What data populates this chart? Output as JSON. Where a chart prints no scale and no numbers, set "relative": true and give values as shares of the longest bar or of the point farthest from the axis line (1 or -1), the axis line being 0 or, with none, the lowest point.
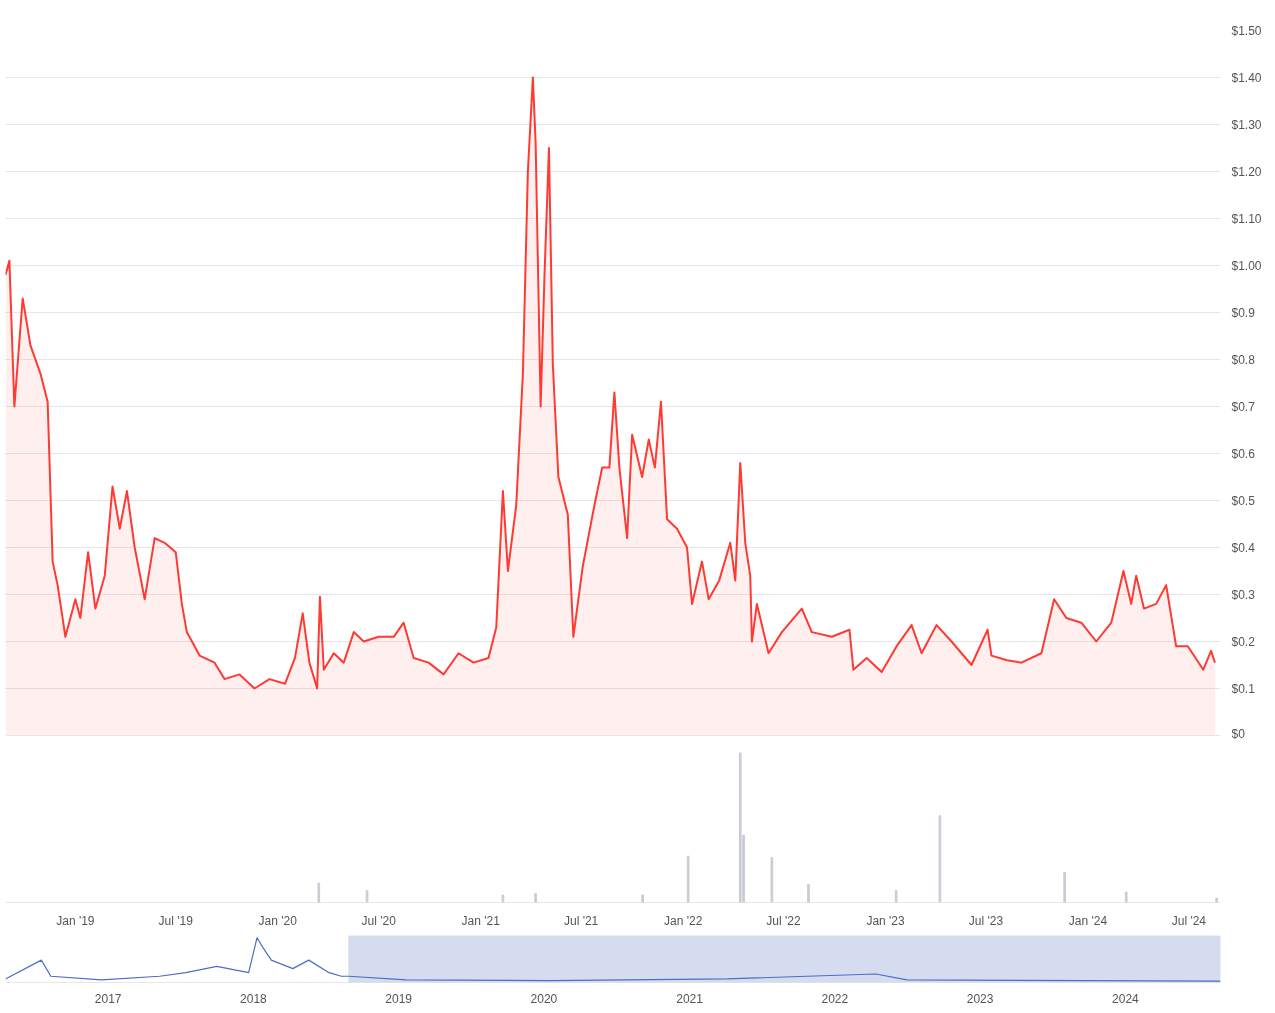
{
  "chart_data": [
    {
      "type": "area",
      "color": "#ff3a33",
      "grid": "y",
      "tick_labels": "y",
      "xlim": [
        "2018-08-28",
        "2024-08-27"
      ],
      "ylim": [
        0,
        1.5
      ],
      "yticks": [
        {
          "value": 0,
          "label": "$0"
        },
        {
          "value": 0.1,
          "label": "$0.1"
        },
        {
          "value": 0.2,
          "label": "$0.2"
        },
        {
          "value": 0.3,
          "label": "$0.3"
        },
        {
          "value": 0.4,
          "label": "$0.4"
        },
        {
          "value": 0.5,
          "label": "$0.5"
        },
        {
          "value": 0.6,
          "label": "$0.6"
        },
        {
          "value": 0.7,
          "label": "$0.7"
        },
        {
          "value": 0.8,
          "label": "$0.8"
        },
        {
          "value": 0.9,
          "label": "$0.9"
        },
        {
          "value": 1.0,
          "label": "$1.00"
        },
        {
          "value": 1.1,
          "label": "$1.10"
        },
        {
          "value": 1.2,
          "label": "$1.20"
        },
        {
          "value": 1.3,
          "label": "$1.30"
        },
        {
          "value": 1.4,
          "label": "$1.40"
        },
        {
          "value": 1.5,
          "label": "$1.50"
        }
      ],
      "x": [
        "2018-08-28",
        "2018-09-04",
        "2018-09-13",
        "2018-09-28",
        "2018-10-12",
        "2018-10-30",
        "2018-11-12",
        "2018-11-21",
        "2018-11-30",
        "2018-12-14",
        "2019-01-01",
        "2019-01-10",
        "2019-01-24",
        "2019-02-06",
        "2019-02-23",
        "2019-03-09",
        "2019-03-22",
        "2019-04-04",
        "2019-04-18",
        "2019-05-06",
        "2019-05-24",
        "2019-06-11",
        "2019-07-01",
        "2019-07-12",
        "2019-07-21",
        "2019-08-13",
        "2019-09-09",
        "2019-09-27",
        "2019-10-24",
        "2019-11-20",
        "2019-12-17",
        "2020-01-14",
        "2020-02-01",
        "2020-02-15",
        "2020-02-27",
        "2020-03-12",
        "2020-03-17",
        "2020-03-24",
        "2020-04-11",
        "2020-04-29",
        "2020-05-17",
        "2020-06-04",
        "2020-07-01",
        "2020-07-28",
        "2020-08-15",
        "2020-09-02",
        "2020-09-29",
        "2020-10-26",
        "2020-11-22",
        "2020-12-19",
        "2021-01-15",
        "2021-01-29",
        "2021-02-10",
        "2021-02-19",
        "2021-03-06",
        "2021-03-18",
        "2021-03-27",
        "2021-04-05",
        "2021-04-10",
        "2021-04-19",
        "2021-04-26",
        "2021-05-04",
        "2021-05-11",
        "2021-05-21",
        "2021-06-07",
        "2021-06-17",
        "2021-07-04",
        "2021-07-25",
        "2021-08-08",
        "2021-08-21",
        "2021-08-30",
        "2021-09-08",
        "2021-09-22",
        "2021-10-01",
        "2021-10-19",
        "2021-10-31",
        "2021-11-11",
        "2021-11-22",
        "2021-12-03",
        "2021-12-21",
        "2022-01-08",
        "2022-01-17",
        "2022-02-04",
        "2022-02-16",
        "2022-03-07",
        "2022-03-27",
        "2022-04-05",
        "2022-04-14",
        "2022-04-23",
        "2022-05-02",
        "2022-05-05",
        "2022-05-14",
        "2022-06-04",
        "2022-06-28",
        "2022-08-03",
        "2022-08-21",
        "2022-09-26",
        "2022-10-28",
        "2022-11-04",
        "2022-11-28",
        "2022-12-25",
        "2023-01-21",
        "2023-02-17",
        "2023-03-07",
        "2023-04-03",
        "2023-04-30",
        "2023-06-05",
        "2023-07-04",
        "2023-07-11",
        "2023-08-08",
        "2023-09-03",
        "2023-10-09",
        "2023-10-22",
        "2023-11-01",
        "2023-11-23",
        "2023-12-20",
        "2024-01-16",
        "2024-02-12",
        "2024-03-05",
        "2024-03-19",
        "2024-03-28",
        "2024-04-11",
        "2024-05-03",
        "2024-05-21",
        "2024-06-08",
        "2024-06-29",
        "2024-07-27",
        "2024-08-10",
        "2024-08-17"
      ],
      "values": [
        0.98,
        1.01,
        0.7,
        0.93,
        0.83,
        0.77,
        0.71,
        0.37,
        0.32,
        0.21,
        0.29,
        0.25,
        0.39,
        0.27,
        0.34,
        0.53,
        0.44,
        0.52,
        0.4,
        0.29,
        0.42,
        0.41,
        0.39,
        0.28,
        0.22,
        0.17,
        0.155,
        0.12,
        0.13,
        0.1,
        0.12,
        0.11,
        0.165,
        0.26,
        0.155,
        0.1,
        0.295,
        0.14,
        0.175,
        0.155,
        0.22,
        0.2,
        0.21,
        0.21,
        0.24,
        0.165,
        0.155,
        0.13,
        0.175,
        0.155,
        0.165,
        0.23,
        0.52,
        0.35,
        0.49,
        0.77,
        1.2,
        1.4,
        1.26,
        0.7,
        0.98,
        1.25,
        0.79,
        0.55,
        0.47,
        0.21,
        0.36,
        0.49,
        0.57,
        0.57,
        0.73,
        0.57,
        0.42,
        0.64,
        0.55,
        0.63,
        0.57,
        0.71,
        0.46,
        0.44,
        0.4,
        0.28,
        0.37,
        0.29,
        0.33,
        0.41,
        0.33,
        0.58,
        0.41,
        0.34,
        0.2,
        0.28,
        0.175,
        0.22,
        0.27,
        0.22,
        0.21,
        0.225,
        0.14,
        0.165,
        0.135,
        0.19,
        0.235,
        0.175,
        0.235,
        0.2,
        0.15,
        0.225,
        0.17,
        0.16,
        0.155,
        0.175,
        0.24,
        0.29,
        0.25,
        0.24,
        0.2,
        0.24,
        0.35,
        0.28,
        0.34,
        0.27,
        0.28,
        0.32,
        0.19,
        0.19,
        0.14,
        0.18,
        0.155
      ]
    },
    {
      "type": "bar",
      "relative": true,
      "color": "#c8ccd4",
      "tick_labels": "x",
      "xlim": [
        "2018-08-28",
        "2024-08-27"
      ],
      "xticks": [
        {
          "value": "2019-01-01",
          "label": "Jan '19"
        },
        {
          "value": "2019-07-01",
          "label": "Jul '19"
        },
        {
          "value": "2020-01-01",
          "label": "Jan '20"
        },
        {
          "value": "2020-07-01",
          "label": "Jul '20"
        },
        {
          "value": "2021-01-01",
          "label": "Jan '21"
        },
        {
          "value": "2021-07-01",
          "label": "Jul '21"
        },
        {
          "value": "2022-01-01",
          "label": "Jan '22"
        },
        {
          "value": "2022-07-01",
          "label": "Jul '22"
        },
        {
          "value": "2023-01-01",
          "label": "Jan '23"
        },
        {
          "value": "2023-07-01",
          "label": "Jul '23"
        },
        {
          "value": "2024-01-01",
          "label": "Jan '24"
        },
        {
          "value": "2024-07-01",
          "label": "Jul '24"
        }
      ],
      "x": [
        "2020-03-15",
        "2020-06-10",
        "2021-02-10",
        "2021-04-10",
        "2021-10-20",
        "2022-01-10",
        "2022-04-14",
        "2022-04-20",
        "2022-06-10",
        "2022-08-15",
        "2023-01-20",
        "2023-04-09",
        "2023-11-20",
        "2024-03-10",
        "2024-08-20"
      ],
      "values": [
        0.13,
        0.08,
        0.05,
        0.06,
        0.05,
        0.31,
        1.0,
        0.45,
        0.3,
        0.12,
        0.08,
        0.58,
        0.2,
        0.07,
        0.03
      ]
    },
    {
      "type": "line",
      "relative": true,
      "color": "#4a6fc4",
      "tick_labels": "x",
      "xlim": [
        "2016-04-18",
        "2024-08-27"
      ],
      "xticks": [
        {
          "value": "2017-01-01",
          "label": "2017"
        },
        {
          "value": "2018-01-01",
          "label": "2018"
        },
        {
          "value": "2019-01-01",
          "label": "2019"
        },
        {
          "value": "2020-01-01",
          "label": "2020"
        },
        {
          "value": "2021-01-01",
          "label": "2021"
        },
        {
          "value": "2022-01-01",
          "label": "2022"
        },
        {
          "value": "2023-01-01",
          "label": "2023"
        },
        {
          "value": "2024-01-01",
          "label": "2024"
        }
      ],
      "bands": [
        {
          "axis": "x",
          "from": "2018-08-28",
          "to": "2024-08-27",
          "color": "#d5dcef"
        }
      ],
      "x": [
        "2016-04-18",
        "2016-07-17",
        "2016-08-10",
        "2016-12-15",
        "2017-05-10",
        "2017-07-15",
        "2017-10-01",
        "2017-12-20",
        "2018-01-10",
        "2018-01-25",
        "2018-02-15",
        "2018-04-10",
        "2018-05-20",
        "2018-07-10",
        "2018-08-10",
        "2018-08-28",
        "2019-01-20",
        "2020-01-15",
        "2021-04-05",
        "2022-04-14",
        "2022-07-01",
        "2024-08-27"
      ],
      "values": [
        0.08,
        0.5,
        0.14,
        0.06,
        0.14,
        0.22,
        0.36,
        0.22,
        1.0,
        0.78,
        0.5,
        0.31,
        0.5,
        0.22,
        0.14,
        0.14,
        0.06,
        0.04,
        0.08,
        0.19,
        0.06,
        0.03
      ]
    }
  ]
}
